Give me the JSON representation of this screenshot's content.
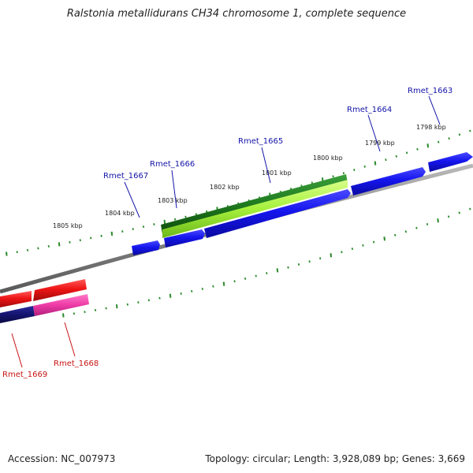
{
  "title": "Ralstonia metallidurans CH34 chromosome 1, complete sequence",
  "footer": {
    "accession": "Accession: NC_007973",
    "summary": "Topology: circular; Length: 3,928,089 bp; Genes: 3,669"
  },
  "kbp_labels": [
    "1805 kbp",
    "1804 kbp",
    "1803 kbp",
    "1802 kbp",
    "1801 kbp",
    "1800 kbp",
    "1799 kbp",
    "1798 kbp"
  ],
  "gene_labels_forward": [
    "Rmet_1667",
    "Rmet_1666",
    "Rmet_1665",
    "Rmet_1664",
    "Rmet_1663"
  ],
  "gene_labels_reverse": [
    "Rmet_1669",
    "Rmet_1668"
  ],
  "colors": {
    "tick": "#2a8a2a",
    "backbone": "#8a8a8a",
    "gene_forward": "#1515ee",
    "gene_reverse": "#ee1515",
    "gene_reverse_alt": "#ee3aa6",
    "gene_navy": "#141470",
    "feature_dark_green": "#1f7a1f",
    "feature_light_green": "#a6f03c",
    "label_forward": "#1414a8",
    "label_reverse": "#c81414"
  }
}
